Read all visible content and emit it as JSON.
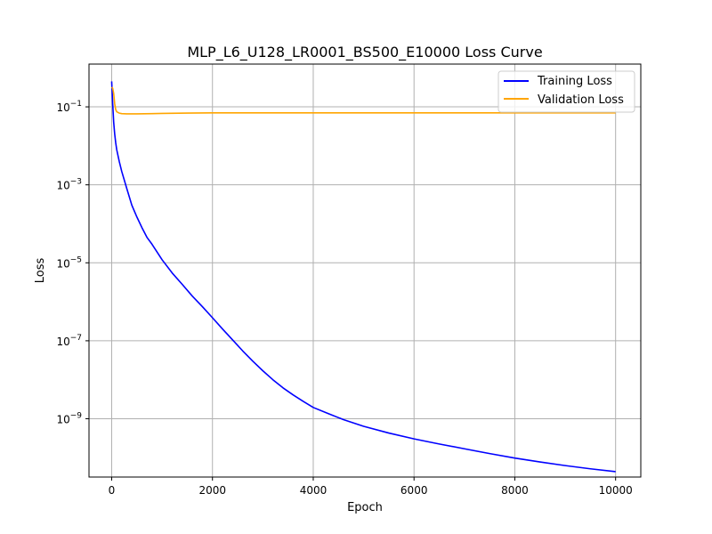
{
  "chart_data": {
    "type": "line",
    "title": "MLP_L6_U128_LR0001_BS500_E10000 Loss Curve",
    "xlabel": "Epoch",
    "ylabel": "Loss",
    "yscale": "log",
    "xlim": [
      -450,
      10500
    ],
    "ylim": [
      3.2e-11,
      1.25
    ],
    "x_ticks": [
      0,
      2000,
      4000,
      6000,
      8000,
      10000
    ],
    "x_tick_labels": [
      "0",
      "2000",
      "4000",
      "6000",
      "8000",
      "10000"
    ],
    "y_ticks": [
      0.1,
      0.001,
      1e-05,
      1e-07,
      1e-09
    ],
    "y_tick_labels": [
      {
        "base": "10",
        "exp": "−1"
      },
      {
        "base": "10",
        "exp": "−3"
      },
      {
        "base": "10",
        "exp": "−5"
      },
      {
        "base": "10",
        "exp": "−7"
      },
      {
        "base": "10",
        "exp": "−9"
      }
    ],
    "grid": true,
    "legend_position": "top-right",
    "series": [
      {
        "name": "Training Loss",
        "color": "#0000ff",
        "x": [
          0,
          20,
          40,
          60,
          80,
          100,
          150,
          200,
          300,
          400,
          500,
          600,
          700,
          800,
          1000,
          1200,
          1400,
          1600,
          1800,
          2000,
          2200,
          2400,
          2600,
          2800,
          3000,
          3200,
          3400,
          3600,
          3800,
          4000,
          4300,
          4600,
          5000,
          5500,
          6000,
          6500,
          7000,
          7500,
          8000,
          8500,
          9000,
          9500,
          10000
        ],
        "y": [
          0.45,
          0.12,
          0.04,
          0.02,
          0.012,
          0.008,
          0.004,
          0.0022,
          0.0008,
          0.0003,
          0.00015,
          8e-05,
          4.5e-05,
          3e-05,
          1.2e-05,
          5.5e-06,
          2.8e-06,
          1.4e-06,
          7.5e-07,
          3.9e-07,
          2e-07,
          1.05e-07,
          5.5e-08,
          3e-08,
          1.7e-08,
          1e-08,
          6.2e-09,
          4.1e-09,
          2.8e-09,
          1.95e-09,
          1.35e-09,
          9.5e-10,
          6.4e-10,
          4.3e-10,
          3.05e-10,
          2.25e-10,
          1.7e-10,
          1.28e-10,
          9.8e-11,
          7.8e-11,
          6.3e-11,
          5.2e-11,
          4.4e-11
        ]
      },
      {
        "name": "Validation Loss",
        "color": "#ffa500",
        "x": [
          0,
          20,
          40,
          60,
          80,
          100,
          150,
          200,
          300,
          500,
          800,
          1000,
          1500,
          2000,
          3000,
          4000,
          5000,
          6000,
          7000,
          8000,
          9000,
          10000
        ],
        "y": [
          0.32,
          0.3,
          0.22,
          0.12,
          0.085,
          0.075,
          0.069,
          0.067,
          0.066,
          0.066,
          0.067,
          0.068,
          0.069,
          0.07,
          0.07,
          0.07,
          0.07,
          0.07,
          0.07,
          0.07,
          0.07,
          0.07
        ]
      }
    ]
  }
}
